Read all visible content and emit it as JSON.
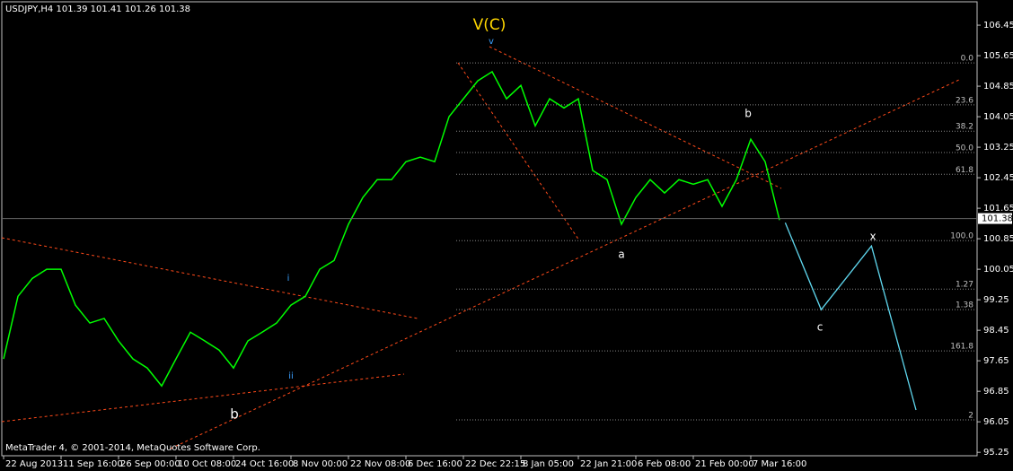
{
  "chart_data": {
    "type": "line",
    "title": "USDJPY,H4  101.39 101.41 101.26 101.38",
    "footer": "MetaTrader 4, © 2001-2014, MetaQuotes Software Corp.",
    "categories": [
      "22 Aug 2013",
      null,
      null,
      null,
      "11 Sep 16:00",
      null,
      null,
      null,
      "26 Sep 00:00",
      null,
      null,
      null,
      "10 Oct 08:00",
      null,
      null,
      null,
      "24 Oct 16:00",
      null,
      null,
      null,
      "8 Nov 00:00",
      null,
      null,
      null,
      "22 Nov 08:00",
      null,
      null,
      null,
      "6 Dec 16:00",
      null,
      null,
      null,
      "22 Dec 22:15",
      null,
      null,
      null,
      "8 Jan 05:00",
      null,
      null,
      null,
      "22 Jan 21:00",
      null,
      null,
      null,
      "6 Feb 08:00",
      null,
      null,
      null,
      "21 Feb 00:00",
      null,
      null,
      null,
      "7 Mar 16:00",
      null,
      null
    ],
    "series": [
      {
        "name": "USDJPY",
        "color": "#00ff00",
        "values": [
          97.7,
          99.34,
          99.81,
          100.05,
          100.05,
          99.11,
          98.64,
          98.76,
          98.17,
          97.7,
          97.46,
          96.99,
          97.7,
          98.4,
          98.17,
          97.93,
          97.46,
          98.17,
          98.4,
          98.64,
          99.11,
          99.34,
          100.05,
          100.28,
          101.23,
          101.93,
          102.4,
          102.4,
          102.87,
          102.99,
          102.87,
          104.05,
          104.52,
          104.99,
          105.23,
          104.52,
          104.87,
          103.81,
          104.52,
          104.28,
          104.52,
          102.64,
          102.4,
          101.23,
          101.93,
          102.4,
          102.05,
          102.4,
          102.28,
          102.4,
          101.7,
          102.4,
          103.46,
          102.87,
          101.34
        ]
      }
    ],
    "current_price": {
      "value": 101.38,
      "label": "101.38"
    },
    "projection": {
      "color": "#5fd7ee",
      "x": [
        54.4,
        56.9,
        60.4,
        63.5
      ],
      "values": [
        101.27,
        98.99,
        100.66,
        96.36
      ]
    },
    "fib_levels": [
      {
        "value": 105.46,
        "label": "0.0"
      },
      {
        "value": 104.36,
        "label": "23.6"
      },
      {
        "value": 103.67,
        "label": "38.2"
      },
      {
        "value": 103.11,
        "label": "50.0"
      },
      {
        "value": 102.54,
        "label": "61.8"
      },
      {
        "value": 100.8,
        "label": "100.0"
      },
      {
        "value": 99.53,
        "label": "1.27"
      },
      {
        "value": 98.99,
        "label": "1.38"
      },
      {
        "value": 97.91,
        "label": "161.8"
      },
      {
        "value": 96.1,
        "label": "2"
      }
    ],
    "wave_labels": [
      "V(C)",
      "v",
      "i",
      "ii",
      "b",
      "a",
      "b",
      "c",
      "x"
    ],
    "ylim": [
      95.16,
      107.11
    ],
    "yticks": [
      106.45,
      105.65,
      104.85,
      104.05,
      103.25,
      102.45,
      101.65,
      100.85,
      100.05,
      99.25,
      98.45,
      97.65,
      96.85,
      96.05,
      95.25
    ]
  }
}
